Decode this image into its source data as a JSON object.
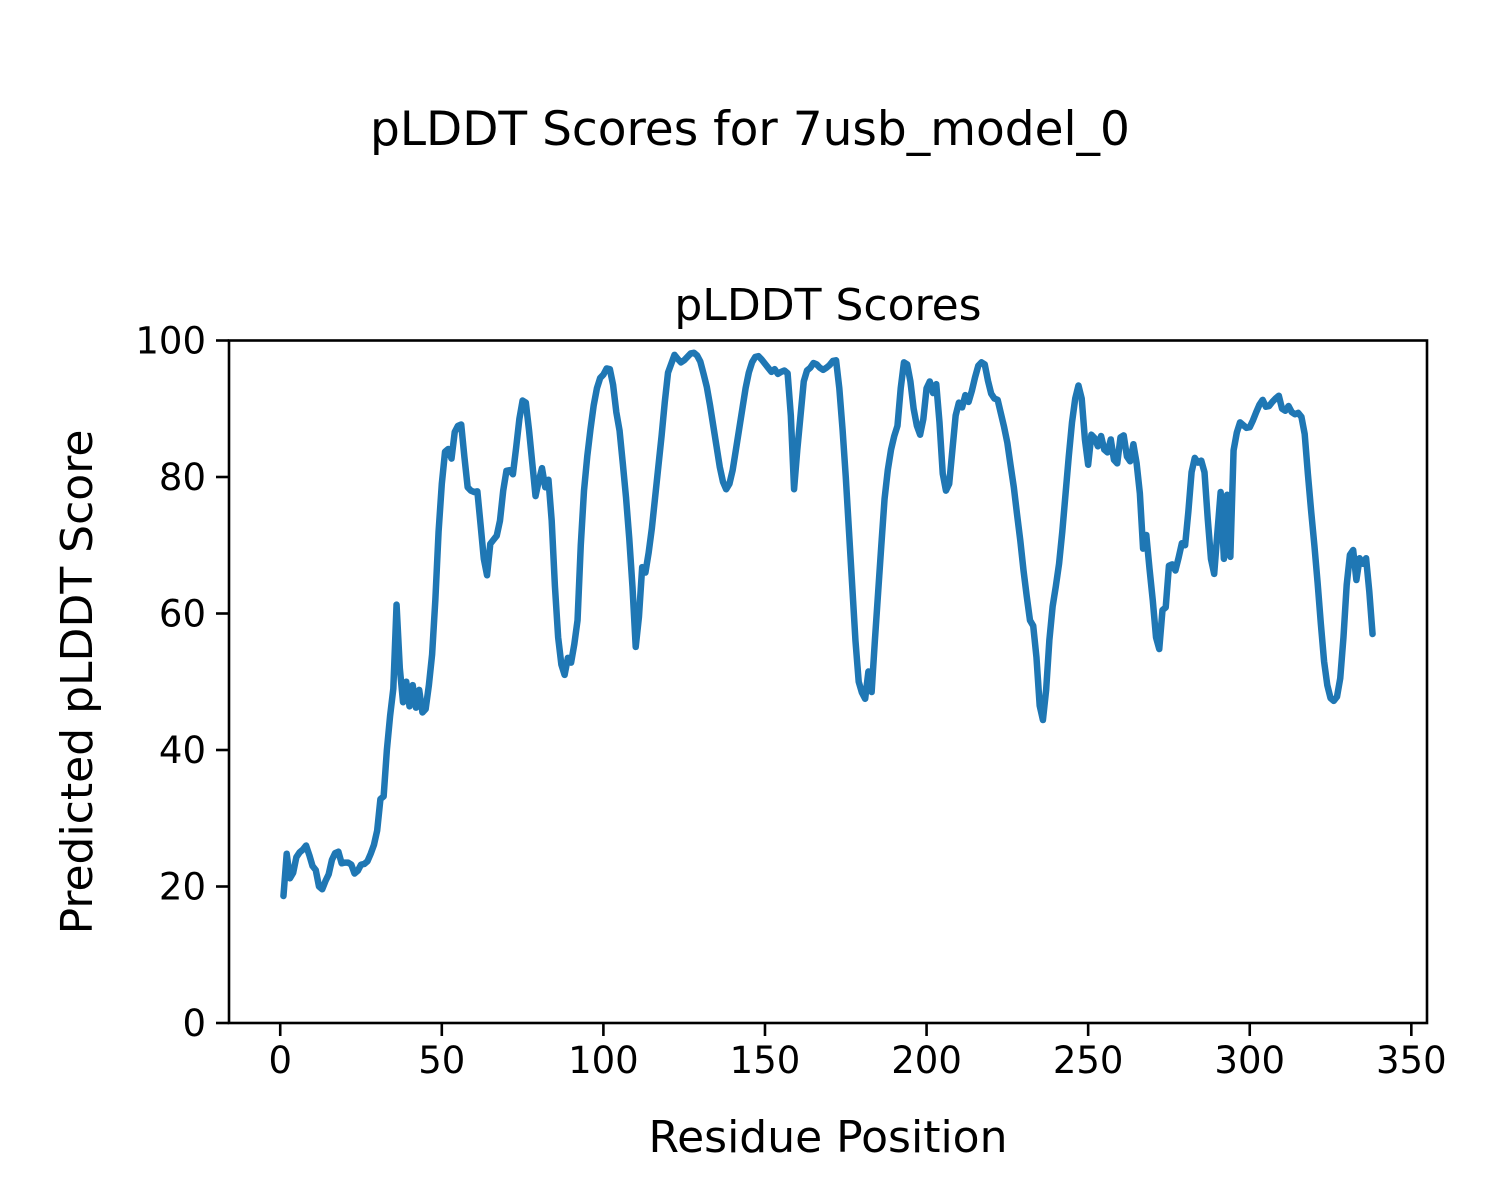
{
  "figure": {
    "suptitle": "pLDDT Scores for 7usb_model_0",
    "background": "#ffffff"
  },
  "chart_data": {
    "type": "line",
    "title": "pLDDT Scores",
    "xlabel": "Residue Position",
    "ylabel": "Predicted pLDDT Score",
    "x_ticks": [
      0,
      50,
      100,
      150,
      200,
      250,
      300,
      350
    ],
    "y_ticks": [
      0,
      20,
      40,
      60,
      80,
      100
    ],
    "xlim": [
      -15.85,
      354.85
    ],
    "ylim": [
      0,
      100
    ],
    "grid": false,
    "legend": false,
    "line_color": "#1f77b4",
    "spine_color": "#000000",
    "series": [
      {
        "name": "pLDDT Scores",
        "x_start": 1,
        "x_step": 1,
        "y": [
          18.6,
          24.8,
          21.2,
          22.0,
          24.3,
          25.0,
          25.4,
          26.0,
          24.6,
          23.0,
          22.4,
          20.0,
          19.6,
          20.8,
          21.8,
          23.9,
          24.9,
          25.1,
          23.4,
          23.5,
          23.5,
          23.2,
          21.9,
          22.3,
          23.2,
          23.3,
          23.7,
          24.8,
          26.1,
          28.2,
          32.8,
          33.2,
          40.0,
          45.0,
          49.0,
          61.3,
          52.0,
          47.0,
          50.0,
          46.4,
          49.5,
          46.2,
          48.8,
          45.5,
          46.0,
          49.5,
          54.0,
          62.0,
          72.0,
          79.0,
          83.7,
          84.1,
          82.7,
          86.6,
          87.5,
          87.7,
          82.9,
          78.5,
          78.0,
          77.8,
          77.9,
          73.0,
          68.0,
          65.6,
          70.2,
          70.8,
          71.4,
          73.6,
          78.0,
          80.9,
          81.0,
          80.4,
          84.3,
          88.5,
          91.2,
          90.9,
          86.8,
          82.0,
          77.2,
          79.4,
          81.3,
          78.5,
          79.6,
          73.6,
          64.0,
          56.5,
          52.5,
          51.0,
          53.5,
          52.8,
          55.5,
          59.0,
          70.0,
          78.0,
          83.0,
          87.0,
          90.5,
          93.0,
          94.5,
          95.0,
          95.9,
          95.8,
          93.5,
          89.5,
          86.8,
          82.0,
          77.0,
          71.0,
          63.9,
          55.1,
          59.5,
          66.8,
          66.0,
          68.9,
          72.5,
          77.0,
          81.5,
          86.0,
          91.0,
          95.3,
          96.6,
          97.9,
          97.3,
          96.8,
          97.1,
          97.6,
          98.1,
          98.2,
          97.8,
          96.9,
          95.1,
          93.2,
          90.5,
          87.5,
          84.5,
          81.5,
          79.3,
          78.2,
          79.0,
          81.0,
          84.0,
          87.0,
          90.0,
          93.0,
          95.3,
          96.8,
          97.6,
          97.7,
          97.2,
          96.6,
          96.0,
          95.4,
          95.8,
          95.1,
          95.4,
          95.6,
          95.2,
          89.0,
          78.2,
          84.0,
          89.0,
          94.0,
          95.6,
          96.0,
          96.7,
          96.5,
          96.0,
          95.7,
          96.0,
          96.4,
          97.0,
          97.1,
          93.0,
          87.0,
          80.0,
          72.0,
          64.0,
          56.0,
          50.0,
          48.4,
          47.5,
          51.5,
          48.5,
          56.0,
          63.0,
          70.0,
          76.8,
          81.0,
          84.0,
          86.0,
          87.5,
          93.0,
          96.8,
          96.5,
          94.0,
          90.0,
          87.5,
          86.2,
          88.5,
          93.0,
          94.0,
          92.3,
          93.6,
          88.0,
          80.5,
          78.0,
          79.0,
          84.0,
          89.0,
          90.9,
          90.2,
          92.0,
          91.0,
          92.6,
          94.6,
          96.3,
          96.8,
          96.5,
          94.1,
          92.2,
          91.5,
          91.3,
          89.3,
          87.3,
          85.0,
          81.7,
          78.5,
          74.5,
          70.7,
          66.3,
          62.5,
          59.0,
          58.2,
          53.6,
          46.5,
          44.4,
          48.8,
          56.1,
          61.0,
          64.0,
          67.3,
          72.0,
          77.5,
          83.0,
          88.0,
          91.5,
          93.4,
          91.5,
          85.5,
          81.8,
          86.2,
          85.7,
          84.5,
          86.0,
          84.0,
          83.6,
          85.5,
          82.5,
          82.0,
          85.8,
          86.1,
          83.0,
          82.3,
          84.8,
          82.0,
          77.6,
          69.5,
          71.5,
          66.5,
          61.9,
          56.5,
          54.8,
          60.5,
          60.9,
          67.0,
          67.2,
          66.3,
          68.2,
          70.3,
          70.0,
          74.9,
          80.7,
          82.8,
          82.1,
          82.4,
          80.7,
          73.9,
          68.0,
          65.8,
          71.9,
          77.8,
          68.0,
          77.4,
          68.3,
          83.9,
          86.5,
          88.0,
          87.6,
          87.2,
          87.3,
          88.3,
          89.5,
          90.6,
          91.3,
          90.3,
          90.4,
          91.0,
          91.5,
          91.9,
          90.0,
          89.7,
          90.4,
          89.5,
          89.2,
          89.4,
          88.8,
          86.3,
          80.4,
          75.0,
          70.0,
          64.5,
          58.5,
          53.0,
          49.5,
          47.6,
          47.2,
          47.8,
          50.5,
          56.5,
          64.2,
          68.6,
          69.3,
          64.9,
          68.1,
          67.3,
          68.1,
          63.2,
          57.0
        ]
      }
    ]
  }
}
